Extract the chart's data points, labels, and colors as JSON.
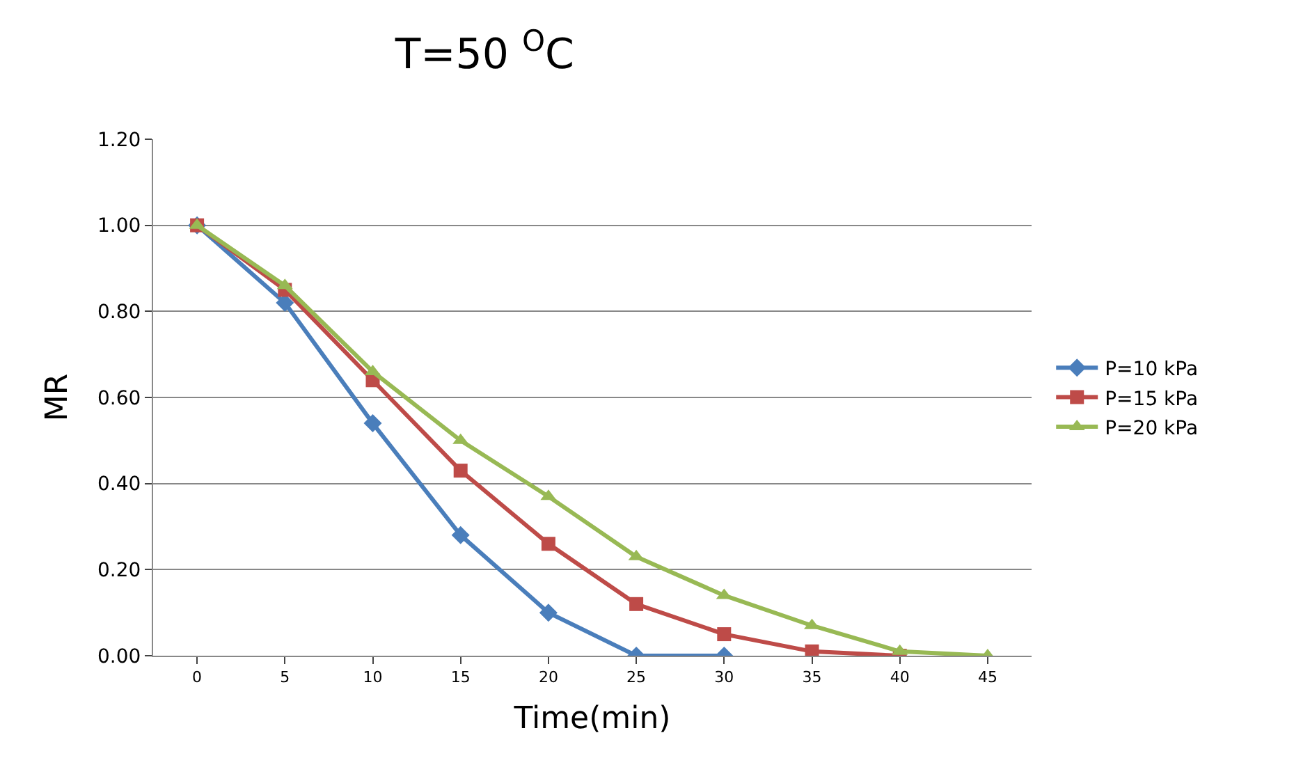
{
  "chart_data": {
    "type": "line",
    "title": "T=50 $^{O}$C",
    "xlabel": "Time(min)",
    "ylabel": "MR",
    "categories": [
      "0",
      "5",
      "10",
      "15",
      "20",
      "25",
      "30",
      "35",
      "40",
      "45"
    ],
    "series": [
      {
        "name": "P=10 kPa",
        "color": "#4a7ebb",
        "marker": "diamond",
        "values": [
          1.0,
          0.82,
          0.54,
          0.28,
          0.1,
          0.0,
          0.0,
          null,
          null,
          null
        ]
      },
      {
        "name": "P=15 kPa",
        "color": "#be4b48",
        "marker": "square",
        "values": [
          1.0,
          0.85,
          0.64,
          0.43,
          0.26,
          0.12,
          0.05,
          0.01,
          0.0,
          null
        ]
      },
      {
        "name": "P=20 kPa",
        "color": "#98b954",
        "marker": "triangle",
        "values": [
          1.0,
          0.86,
          0.66,
          0.5,
          0.37,
          0.23,
          0.14,
          0.07,
          0.01,
          0.0
        ]
      }
    ],
    "ylim": [
      0,
      1.2
    ],
    "yticks": [
      {
        "value": 0,
        "label": "0.00"
      },
      {
        "value": 0.2,
        "label": "0.20"
      },
      {
        "value": 0.4,
        "label": "0.40"
      },
      {
        "value": 0.6,
        "label": "0.60"
      },
      {
        "value": 0.8,
        "label": "0.80"
      },
      {
        "value": 1.0,
        "label": "1.00"
      },
      {
        "value": 1.2,
        "label": "1.20"
      }
    ],
    "grid": "y",
    "legend": "right"
  }
}
